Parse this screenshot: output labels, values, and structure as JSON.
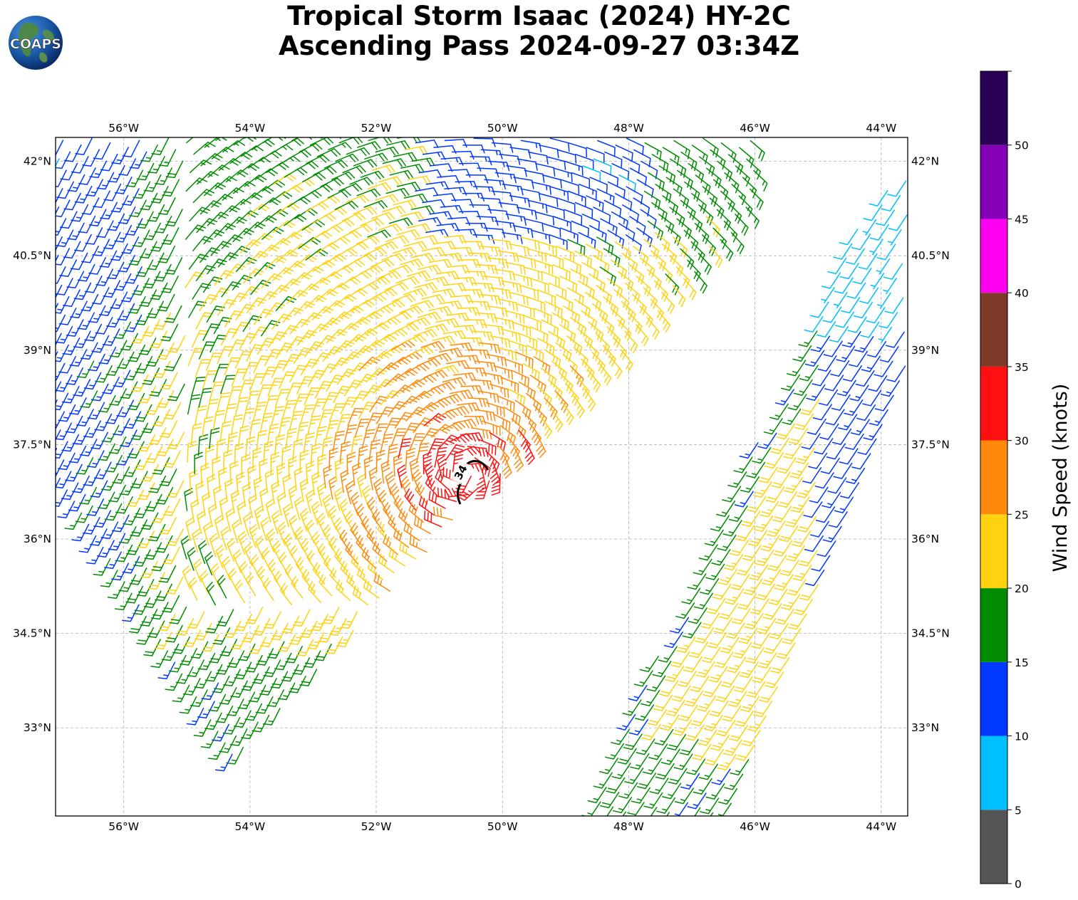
{
  "title": {
    "line1": "Tropical Storm Isaac (2024) HY-2C",
    "line2": "Ascending Pass 2024-09-27 03:34Z"
  },
  "logo": {
    "text": "COAPS",
    "icon": "globe-logo-icon"
  },
  "map": {
    "lon_range": [
      -57.08,
      -43.58
    ],
    "lat_range": [
      31.6,
      42.38
    ],
    "lon_ticks": [
      {
        "value": -56,
        "label": "56°W"
      },
      {
        "value": -54,
        "label": "54°W"
      },
      {
        "value": -52,
        "label": "52°W"
      },
      {
        "value": -50,
        "label": "50°W"
      },
      {
        "value": -48,
        "label": "48°W"
      },
      {
        "value": -46,
        "label": "46°W"
      },
      {
        "value": -44,
        "label": "44°W"
      }
    ],
    "lat_ticks": [
      {
        "value": 42,
        "label": "42°N"
      },
      {
        "value": 40.5,
        "label": "40.5°N"
      },
      {
        "value": 39,
        "label": "39°N"
      },
      {
        "value": 37.5,
        "label": "37.5°N"
      },
      {
        "value": 36,
        "label": "36°N"
      },
      {
        "value": 34.5,
        "label": "34.5°N"
      },
      {
        "value": 33,
        "label": "33°N"
      }
    ],
    "gridlines": true,
    "center": {
      "lon": -50.6,
      "lat": 37.05
    },
    "contour_label": "34",
    "contour_level_knots": 34
  },
  "colorbar": {
    "label": "Wind Speed (knots)",
    "min": 0,
    "max": 55,
    "bands": [
      {
        "from": 0,
        "to": 5,
        "color": "#555555"
      },
      {
        "from": 5,
        "to": 10,
        "color": "#00bfff"
      },
      {
        "from": 10,
        "to": 15,
        "color": "#0038ff"
      },
      {
        "from": 15,
        "to": 20,
        "color": "#008c00"
      },
      {
        "from": 20,
        "to": 25,
        "color": "#ffd20f"
      },
      {
        "from": 25,
        "to": 30,
        "color": "#ff8a0a"
      },
      {
        "from": 30,
        "to": 35,
        "color": "#ff1010"
      },
      {
        "from": 35,
        "to": 40,
        "color": "#7e3a28"
      },
      {
        "from": 40,
        "to": 45,
        "color": "#ff00f0"
      },
      {
        "from": 45,
        "to": 50,
        "color": "#8400b6"
      },
      {
        "from": 50,
        "to": 55,
        "color": "#2a0057"
      }
    ],
    "ticks": [
      {
        "value": 0,
        "label": "0"
      },
      {
        "value": 5,
        "label": "5"
      },
      {
        "value": 10,
        "label": "10"
      },
      {
        "value": 15,
        "label": "15"
      },
      {
        "value": 20,
        "label": "20"
      },
      {
        "value": 25,
        "label": "25"
      },
      {
        "value": 30,
        "label": "30"
      },
      {
        "value": 35,
        "label": "35"
      },
      {
        "value": 40,
        "label": "40"
      },
      {
        "value": 45,
        "label": "45"
      },
      {
        "value": 50,
        "label": "50"
      }
    ]
  }
}
